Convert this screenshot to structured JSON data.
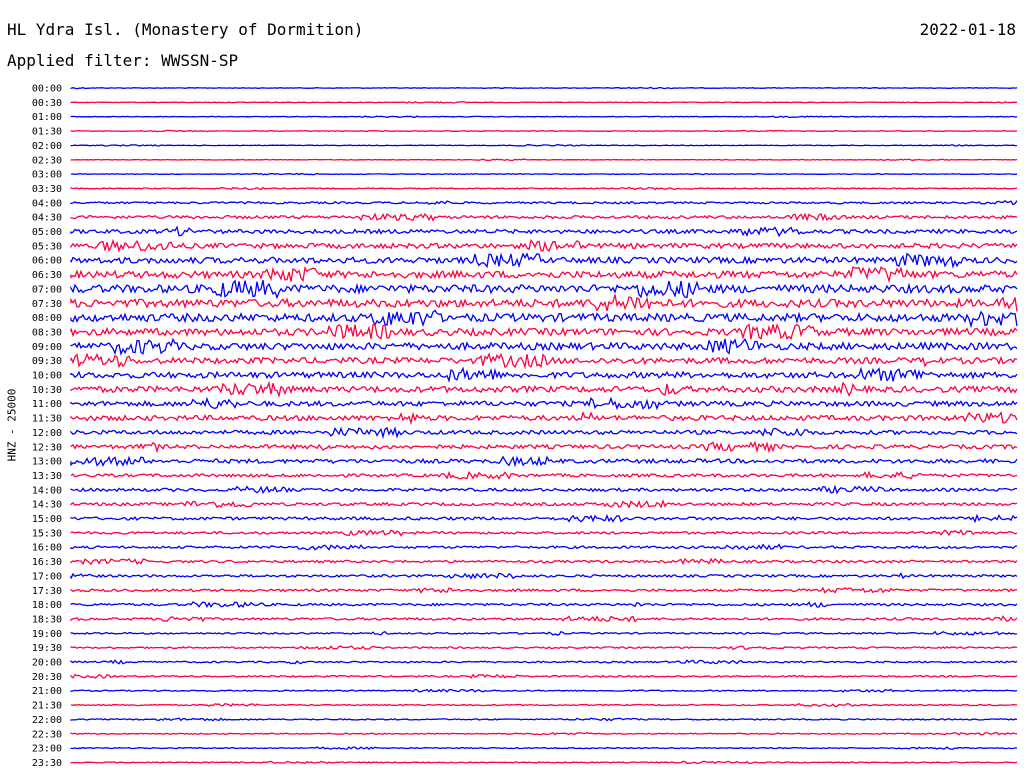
{
  "header": {
    "title": "HL Ydra Isl. (Monastery of Dormition)",
    "date": "2022-01-18",
    "filter": "Applied filter: WWSSN-SP"
  },
  "chart_data": {
    "type": "line",
    "title": "HL Ydra Isl. (Monastery of Dormition)",
    "subtitle": "Applied filter: WWSSN-SP",
    "date": "2022-01-18",
    "ylabel": "HNZ - 25000",
    "grid": false,
    "colors": [
      "#0000ff",
      "#ff0040"
    ],
    "row_labels": [
      "00:00",
      "00:30",
      "01:00",
      "01:30",
      "02:00",
      "02:30",
      "03:00",
      "03:30",
      "04:00",
      "04:30",
      "05:00",
      "05:30",
      "06:00",
      "06:30",
      "07:00",
      "07:30",
      "08:00",
      "08:30",
      "09:00",
      "09:30",
      "10:00",
      "10:30",
      "11:00",
      "11:30",
      "12:00",
      "12:30",
      "13:00",
      "13:30",
      "14:00",
      "14:30",
      "15:00",
      "15:30",
      "16:00",
      "16:30",
      "17:00",
      "17:30",
      "18:00",
      "18:30",
      "19:00",
      "19:30",
      "20:00",
      "20:30",
      "21:00",
      "21:30",
      "22:00",
      "22:30",
      "23:00",
      "23:30"
    ],
    "noise_level": [
      0.3,
      0.3,
      0.3,
      0.3,
      0.3,
      0.3,
      0.3,
      0.5,
      1,
      1.5,
      2,
      2.5,
      3,
      3.5,
      4,
      4,
      4,
      3.5,
      3.5,
      3,
      3,
      3,
      2.5,
      2.5,
      2,
      2,
      2,
      1.5,
      1.5,
      1.5,
      1.5,
      1.2,
      1.2,
      1.2,
      1.2,
      1.2,
      1.2,
      1.2,
      0.8,
      0.8,
      0.8,
      0.8,
      0.6,
      0.6,
      0.6,
      0.5,
      0.5,
      0.5
    ]
  }
}
